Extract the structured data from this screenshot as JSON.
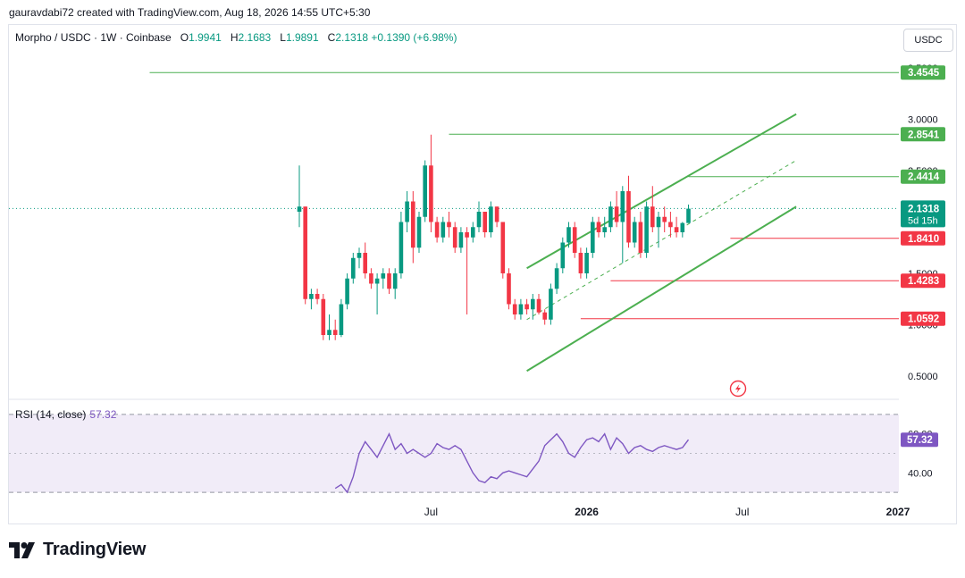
{
  "header": {
    "credit": "gauravdabi72 created with TradingView.com, Aug 18, 2026 14:55 UTC+5:30"
  },
  "legend": {
    "symbol": "Morpho / USDC · 1W · Coinbase",
    "o_label": "O",
    "o_value": "1.9941",
    "h_label": "H",
    "h_value": "2.1683",
    "l_label": "L",
    "l_value": "1.9891",
    "c_label": "C",
    "c_value": "2.1318",
    "change": "+0.1390 (+6.98%)"
  },
  "currency_button": {
    "label": "USDC"
  },
  "rsi": {
    "label": "RSI (14, close)",
    "value": "57.32"
  },
  "logo": {
    "text": "TradingView"
  },
  "colors": {
    "up": "#089981",
    "down": "#f23645",
    "green_line": "#4caf50",
    "red_line": "#f23645",
    "rsi_line": "#7e57c2",
    "rsi_band": "#ede7f6"
  },
  "chart_data": {
    "type": "candlestick",
    "y_ticks": [
      {
        "value": 3.5,
        "label": "3.5000"
      },
      {
        "value": 3.0,
        "label": "3.0000"
      },
      {
        "value": 2.5,
        "label": "2.5000"
      },
      {
        "value": 1.5,
        "label": "1.5000"
      },
      {
        "value": 1.0,
        "label": "1.0000"
      },
      {
        "value": 0.5,
        "label": "0.5000"
      }
    ],
    "x_ticks": [
      {
        "label": "Jul",
        "bar": 22,
        "bold": false
      },
      {
        "label": "2026",
        "bar": 48,
        "bold": true
      },
      {
        "label": "Jul",
        "bar": 74,
        "bold": false
      },
      {
        "label": "2027",
        "bar": 100,
        "bold": true
      }
    ],
    "ylim": [
      0.3,
      3.5
    ],
    "price_badges": [
      {
        "label": "3.4545",
        "value": 3.4545,
        "kind": "green",
        "start_bar": -25
      },
      {
        "label": "2.8541",
        "value": 2.8541,
        "kind": "green",
        "start_bar": 25
      },
      {
        "label": "2.4414",
        "value": 2.4414,
        "kind": "green",
        "start_bar": 65
      },
      {
        "label": "1.8410",
        "value": 1.841,
        "kind": "red",
        "start_bar": 72
      },
      {
        "label": "1.4283",
        "value": 1.4283,
        "kind": "red",
        "start_bar": 52
      },
      {
        "label": "1.0592",
        "value": 1.0592,
        "kind": "red",
        "start_bar": 47
      }
    ],
    "current": {
      "label": "2.1318",
      "value": 2.1318,
      "countdown": "5d 15h"
    },
    "channel": {
      "upper": [
        [
          38,
          1.55
        ],
        [
          83,
          3.05
        ]
      ],
      "middle": [
        [
          38,
          1.05
        ],
        [
          83,
          2.6
        ]
      ],
      "lower": [
        [
          38,
          0.55
        ],
        [
          83,
          2.15
        ]
      ]
    },
    "candles": [
      [
        2.1,
        2.55,
        1.95,
        2.15
      ],
      [
        2.15,
        2.15,
        1.2,
        1.25
      ],
      [
        1.25,
        1.35,
        1.15,
        1.3
      ],
      [
        1.3,
        1.35,
        1.2,
        1.25
      ],
      [
        1.25,
        1.3,
        0.85,
        0.9
      ],
      [
        0.9,
        1.1,
        0.85,
        0.95
      ],
      [
        0.95,
        1.05,
        0.85,
        0.9
      ],
      [
        0.9,
        1.25,
        0.88,
        1.2
      ],
      [
        1.2,
        1.5,
        1.15,
        1.45
      ],
      [
        1.45,
        1.7,
        1.4,
        1.65
      ],
      [
        1.65,
        1.75,
        1.55,
        1.7
      ],
      [
        1.7,
        1.8,
        1.45,
        1.5
      ],
      [
        1.5,
        1.55,
        1.35,
        1.4
      ],
      [
        1.4,
        1.5,
        1.1,
        1.45
      ],
      [
        1.45,
        1.55,
        1.35,
        1.5
      ],
      [
        1.5,
        1.55,
        1.3,
        1.35
      ],
      [
        1.35,
        1.55,
        1.25,
        1.5
      ],
      [
        1.5,
        2.1,
        1.45,
        2.0
      ],
      [
        2.0,
        2.3,
        1.9,
        2.2
      ],
      [
        2.2,
        2.3,
        1.6,
        1.75
      ],
      [
        1.75,
        2.1,
        1.7,
        2.05
      ],
      [
        2.05,
        2.6,
        2.0,
        2.55
      ],
      [
        2.55,
        2.85,
        1.9,
        2.0
      ],
      [
        2.0,
        2.05,
        1.8,
        1.85
      ],
      [
        1.85,
        2.05,
        1.8,
        2.0
      ],
      [
        2.0,
        2.1,
        1.85,
        1.95
      ],
      [
        1.95,
        2.0,
        1.7,
        1.75
      ],
      [
        1.75,
        1.95,
        1.7,
        1.9
      ],
      [
        1.9,
        1.95,
        1.1,
        1.85
      ],
      [
        1.85,
        2.0,
        1.8,
        1.95
      ],
      [
        1.95,
        2.2,
        1.9,
        2.1
      ],
      [
        2.1,
        2.1,
        1.85,
        1.9
      ],
      [
        1.9,
        2.2,
        1.85,
        2.15
      ],
      [
        2.15,
        2.15,
        1.95,
        2.0
      ],
      [
        2.0,
        2.0,
        1.45,
        1.5
      ],
      [
        1.5,
        1.55,
        1.15,
        1.2
      ],
      [
        1.2,
        1.25,
        1.05,
        1.1
      ],
      [
        1.1,
        1.25,
        1.05,
        1.2
      ],
      [
        1.2,
        1.25,
        1.1,
        1.15
      ],
      [
        1.15,
        1.3,
        1.05,
        1.25
      ],
      [
        1.25,
        1.3,
        1.1,
        1.12
      ],
      [
        1.12,
        1.15,
        1.0,
        1.05
      ],
      [
        1.05,
        1.4,
        1.0,
        1.35
      ],
      [
        1.35,
        1.6,
        1.3,
        1.55
      ],
      [
        1.55,
        1.85,
        1.5,
        1.8
      ],
      [
        1.8,
        2.0,
        1.75,
        1.95
      ],
      [
        1.95,
        2.0,
        1.65,
        1.7
      ],
      [
        1.7,
        1.75,
        1.45,
        1.5
      ],
      [
        1.5,
        1.75,
        1.45,
        1.7
      ],
      [
        1.7,
        2.05,
        1.65,
        2.0
      ],
      [
        2.0,
        2.05,
        1.85,
        1.9
      ],
      [
        1.9,
        2.05,
        1.85,
        1.95
      ],
      [
        1.95,
        2.2,
        1.9,
        2.15
      ],
      [
        2.15,
        2.3,
        1.95,
        2.0
      ],
      [
        2.0,
        2.35,
        1.6,
        2.3
      ],
      [
        2.3,
        2.45,
        1.75,
        1.8
      ],
      [
        1.8,
        2.05,
        1.75,
        2.0
      ],
      [
        2.0,
        2.1,
        1.65,
        1.7
      ],
      [
        1.7,
        2.2,
        1.65,
        2.15
      ],
      [
        2.15,
        2.35,
        1.9,
        1.95
      ],
      [
        1.95,
        2.1,
        1.75,
        2.05
      ],
      [
        2.05,
        2.15,
        1.9,
        2.0
      ],
      [
        2.0,
        2.1,
        1.85,
        1.95
      ],
      [
        1.95,
        2.05,
        1.85,
        1.9
      ],
      [
        1.9,
        2.0,
        1.85,
        1.99
      ],
      [
        1.99,
        2.17,
        1.99,
        2.13
      ]
    ],
    "rsi_series": [
      32,
      34,
      30,
      38,
      50,
      56,
      52,
      48,
      54,
      60,
      52,
      55,
      50,
      52,
      50,
      48,
      50,
      55,
      53,
      52,
      54,
      52,
      46,
      40,
      36,
      35,
      38,
      37,
      40,
      41,
      40,
      39,
      38,
      42,
      46,
      54,
      57,
      60,
      56,
      50,
      48,
      53,
      57,
      58,
      56,
      60,
      52,
      58,
      55,
      50,
      53,
      54,
      52,
      51,
      53,
      54,
      53,
      52,
      53,
      57
    ],
    "rsi_ticks": [
      {
        "value": 60,
        "label": "60.00"
      },
      {
        "value": 40,
        "label": "40.00"
      }
    ],
    "rsi_band": [
      30,
      70
    ],
    "rsi_ylim": [
      25,
      75
    ]
  }
}
